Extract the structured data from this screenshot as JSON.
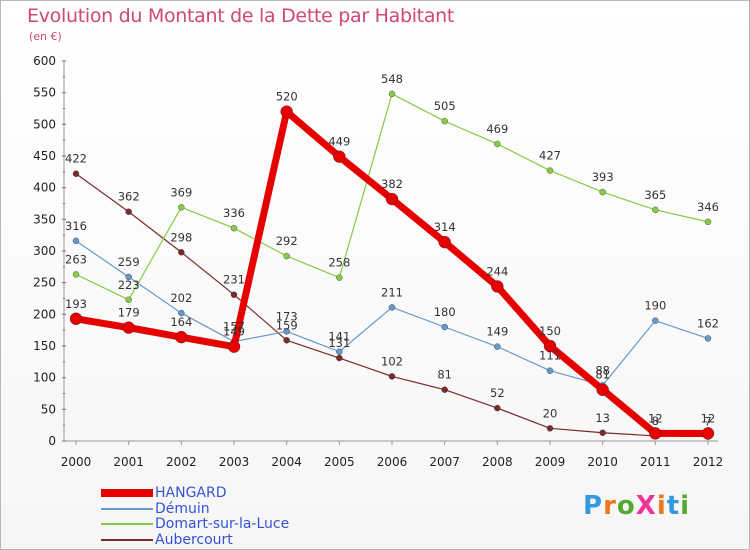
{
  "title": "Evolution du Montant de la Dette par Habitant",
  "subtitle": "(en €)",
  "logo": "ProXiti",
  "chart_data": {
    "type": "line",
    "title": "Evolution du Montant de la Dette par Habitant",
    "subtitle": "(en €)",
    "xlabel": "",
    "ylabel": "",
    "x": [
      "2000",
      "2001",
      "2002",
      "2003",
      "2004",
      "2005",
      "2006",
      "2007",
      "2008",
      "2009",
      "2010",
      "2011",
      "2012"
    ],
    "ylim": [
      0,
      600
    ],
    "yticks": [
      0,
      50,
      100,
      150,
      200,
      250,
      300,
      350,
      400,
      450,
      500,
      550,
      600
    ],
    "grid": false,
    "legend_position": "bottom-left",
    "series": [
      {
        "name": "HANGARD",
        "color": "#e60000",
        "values": [
          193,
          179,
          164,
          149,
          520,
          449,
          382,
          314,
          244,
          150,
          81,
          12,
          12
        ],
        "breaks": [
          3
        ]
      },
      {
        "name": "Démuin",
        "color": "#6699cc",
        "values": [
          316,
          259,
          202,
          157,
          173,
          141,
          211,
          180,
          149,
          111,
          88,
          190,
          162
        ],
        "breaks": []
      },
      {
        "name": "Domart-sur-la-Luce",
        "color": "#88cc44",
        "values": [
          263,
          223,
          369,
          336,
          292,
          258,
          548,
          505,
          469,
          427,
          393,
          365,
          346
        ],
        "breaks": []
      },
      {
        "name": "Aubercourt",
        "color": "#7a2a2a",
        "values": [
          422,
          362,
          298,
          231,
          159,
          131,
          102,
          81,
          52,
          20,
          13,
          8,
          7
        ],
        "breaks": []
      }
    ]
  }
}
